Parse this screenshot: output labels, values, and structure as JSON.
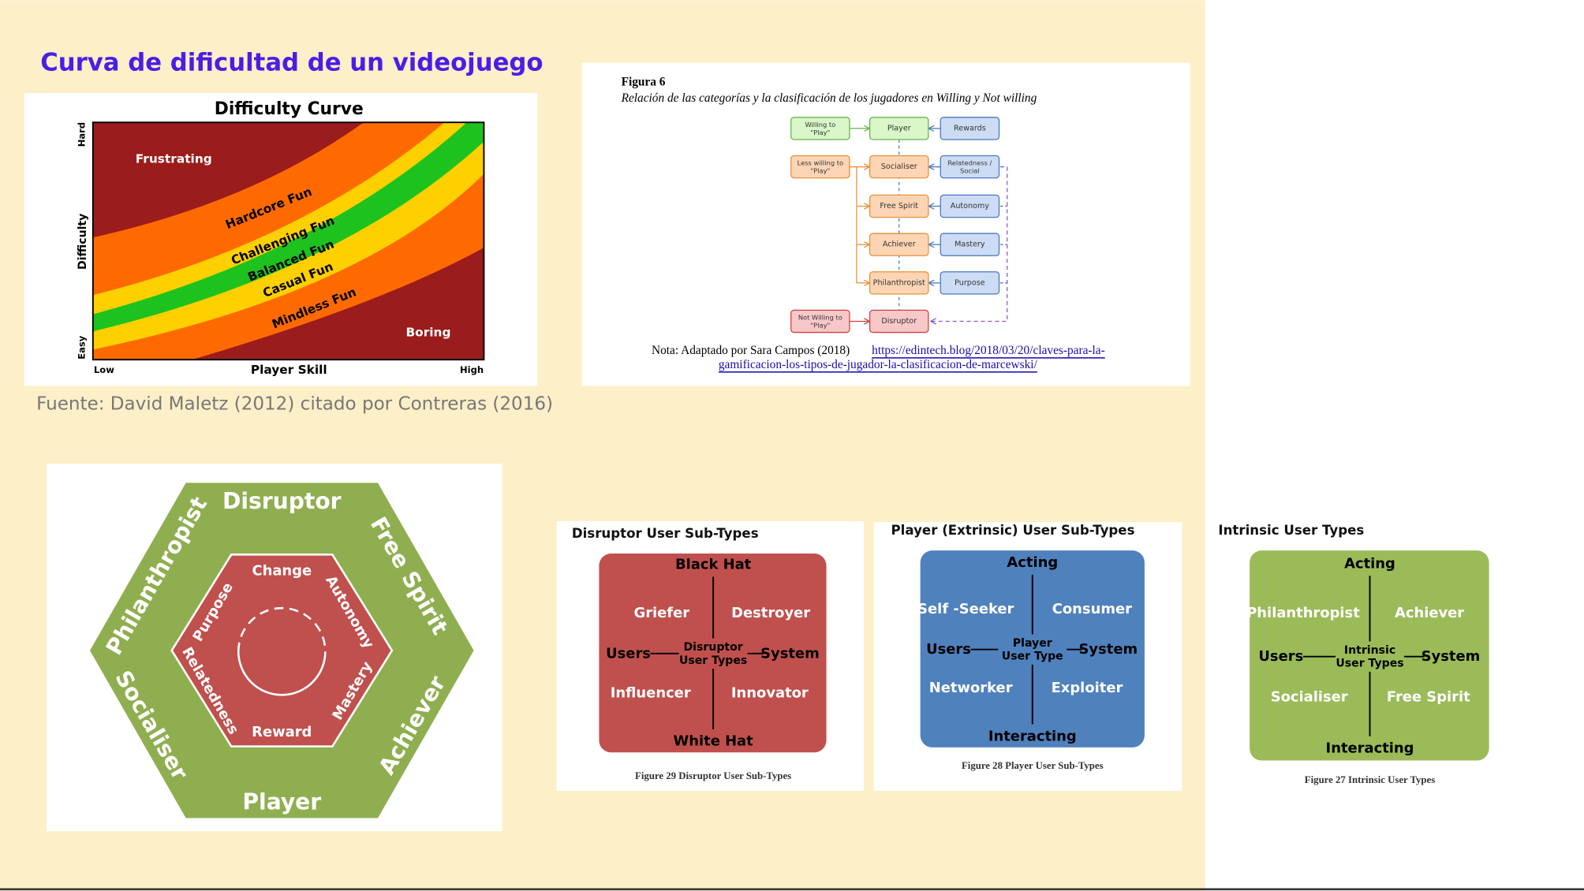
{
  "title": "Curva de dificultad de un videojuego",
  "source": "Fuente: David Maletz (2012) citado por Contreras (2016)",
  "difficulty_curve": {
    "title": "Difficulty Curve",
    "y_label": "Difficulty",
    "x_label": "Player Skill",
    "y_ends": [
      "Hard",
      "Easy"
    ],
    "x_ends": [
      "Low",
      "High"
    ],
    "bands": [
      "Frustrating",
      "Hardcore Fun",
      "Challenging Fun",
      "Balanced Fun",
      "Casual Fun",
      "Mindless Fun",
      "Boring"
    ]
  },
  "figura6": {
    "label": "Figura 6",
    "caption": "Relación de las categorías y la clasificación de los jugadores en Willing y Not willing",
    "categories": [
      [
        "Willing to",
        "\"Play\""
      ],
      [
        "Less willing to",
        "\"Play\""
      ],
      [
        "Not Willing to",
        "\"Play\""
      ]
    ],
    "user_types": [
      "Player",
      "Socialiser",
      "Free Spirit",
      "Achiever",
      "Philanthropist",
      "Disruptor"
    ],
    "motivations": [
      [
        "Rewards"
      ],
      [
        "Relatedness /",
        "Social"
      ],
      [
        "Autonomy"
      ],
      [
        "Mastery"
      ],
      [
        "Purpose"
      ]
    ],
    "note": "Nota: Adaptado por Sara Campos (2018)",
    "link_lines": [
      "https://edintech.blog/2018/03/20/claves-para-la-",
      "gamificacion-los-tipos-de-jugador-la-clasificacion-de-marcewski/"
    ]
  },
  "hexagon": {
    "outer": [
      "Disruptor",
      "Free Spirit",
      "Achiever",
      "Player",
      "Socialiser",
      "Philanthropist"
    ],
    "inner": [
      "Change",
      "Autonomy",
      "Mastery",
      "Reward",
      "Relatedness",
      "Purpose"
    ]
  },
  "quadrants": [
    {
      "title": "Disruptor User Sub-Types",
      "top": "Black Hat",
      "bottom": "White Hat",
      "left": "Users",
      "right": "System",
      "center": [
        "Disruptor",
        "User Types"
      ],
      "cells": [
        "Griefer",
        "Destroyer",
        "Influencer",
        "Innovator"
      ],
      "caption": "Figure 29 Disruptor User Sub-Types"
    },
    {
      "title": "Player (Extrinsic) User Sub-Types",
      "top": "Acting",
      "bottom": "Interacting",
      "left": "Users",
      "right": "System",
      "center": [
        "Player",
        "User Type"
      ],
      "cells": [
        "Self -Seeker",
        "Consumer",
        "Networker",
        "Exploiter"
      ],
      "caption": "Figure 28 Player User Sub-Types"
    },
    {
      "title": "Intrinsic User Types",
      "top": "Acting",
      "bottom": "Interacting",
      "left": "Users",
      "right": "System",
      "center": [
        "Intrinsic",
        "User Types"
      ],
      "cells": [
        "Philanthropist",
        "Achiever",
        "Socialiser",
        "Free Spirit"
      ],
      "caption": "Figure 27 Intrinsic User Types"
    }
  ]
}
